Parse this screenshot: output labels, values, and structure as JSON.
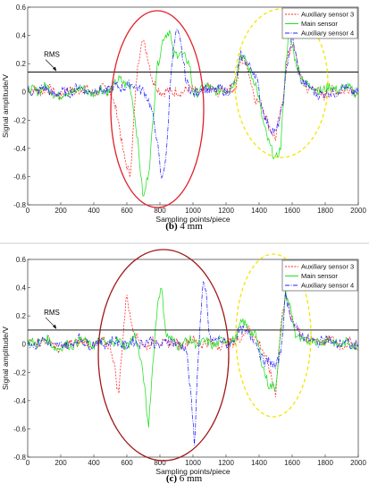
{
  "chart_data": [
    {
      "type": "line",
      "caption_letter": "(b)",
      "caption_text": " 4 mm",
      "xlabel": "Sampling points/piece",
      "ylabel": "Signal amplitude/V",
      "xlim": [
        0,
        2000
      ],
      "ylim": [
        -0.8,
        0.6
      ],
      "xticks": [
        "0",
        "200",
        "400",
        "600",
        "800",
        "1000",
        "1200",
        "1400",
        "1600",
        "1800",
        "2000"
      ],
      "yticks": [
        "0.6",
        "0.4",
        "0.2",
        "0",
        "-0.2",
        "-0.4",
        "-0.6",
        "-0.8"
      ],
      "rms_label": "RMS",
      "rms_value": 0.14,
      "grid": false,
      "legend_position": "top-right",
      "series": [
        {
          "name": "Auxiliary sensor 3",
          "color": "#ff2020",
          "dash": "2,1.5",
          "x": [
            0,
            100,
            200,
            300,
            400,
            500,
            540,
            580,
            620,
            660,
            690,
            720,
            760,
            800,
            840,
            880,
            900,
            960,
            1000,
            1100,
            1200,
            1260,
            1290,
            1330,
            1380,
            1420,
            1460,
            1500,
            1540,
            1570,
            1600,
            1650,
            1700,
            1800,
            1900,
            2000
          ],
          "y": [
            0,
            0.02,
            -0.02,
            0.02,
            0,
            0.02,
            -0.15,
            -0.45,
            -0.58,
            0.1,
            0.38,
            0.3,
            0.05,
            0,
            0.02,
            -0.02,
            0,
            0.02,
            0,
            0.02,
            0,
            0.05,
            0.22,
            0.18,
            -0.05,
            -0.12,
            -0.22,
            -0.33,
            -0.1,
            0.25,
            0.35,
            0.1,
            0.02,
            -0.02,
            0.02,
            0
          ]
        },
        {
          "name": "Main sensor",
          "color": "#1ee01e",
          "dash": "",
          "x": [
            0,
            100,
            200,
            300,
            400,
            500,
            560,
            620,
            660,
            700,
            740,
            780,
            820,
            860,
            880,
            920,
            980,
            1000,
            1100,
            1200,
            1260,
            1290,
            1330,
            1380,
            1420,
            1460,
            1500,
            1530,
            1560,
            1580,
            1620,
            1700,
            1800,
            1900,
            2000
          ],
          "y": [
            0,
            0.03,
            -0.03,
            0.02,
            0,
            0.02,
            0.08,
            0.05,
            -0.3,
            -0.75,
            -0.5,
            0.15,
            0.4,
            0.42,
            0.25,
            0.3,
            0.18,
            0,
            0.03,
            0,
            0.1,
            0.25,
            0.2,
            0.05,
            -0.2,
            -0.35,
            -0.5,
            -0.4,
            0.2,
            0.44,
            0.2,
            0.03,
            0.02,
            0.03,
            0
          ]
        },
        {
          "name": "Auxiliary sensor 4",
          "color": "#2020ff",
          "dash": "5,1.5,1,1.5",
          "x": [
            0,
            100,
            200,
            300,
            400,
            500,
            600,
            700,
            740,
            780,
            810,
            840,
            870,
            900,
            920,
            960,
            1000,
            1100,
            1200,
            1260,
            1290,
            1330,
            1380,
            1420,
            1460,
            1500,
            1540,
            1570,
            1600,
            1650,
            1700,
            1800,
            1900,
            2000
          ],
          "y": [
            0,
            0.02,
            -0.02,
            0.03,
            0,
            0.02,
            0.05,
            0.02,
            -0.1,
            -0.3,
            -0.62,
            -0.45,
            0.2,
            0.45,
            0.38,
            0.05,
            0,
            0.02,
            0,
            0.08,
            0.25,
            0.22,
            0.1,
            -0.1,
            -0.25,
            -0.31,
            -0.1,
            0.2,
            0.38,
            0.1,
            0.02,
            -0.02,
            0.02,
            0
          ]
        }
      ]
    },
    {
      "type": "line",
      "caption_letter": "(c)",
      "caption_text": " 6 mm",
      "xlabel": "Sampling points/piece",
      "ylabel": "Signal amplitude/V",
      "xlim": [
        0,
        2000
      ],
      "ylim": [
        -0.8,
        0.6
      ],
      "xticks": [
        "0",
        "200",
        "400",
        "600",
        "800",
        "1000",
        "1200",
        "1400",
        "1600",
        "1800",
        "2000"
      ],
      "yticks": [
        "0.6",
        "0.4",
        "0.2",
        "0",
        "-0.2",
        "-0.4",
        "-0.6",
        "-0.8"
      ],
      "rms_label": "RMS",
      "rms_value": 0.1,
      "grid": false,
      "legend_position": "top-right",
      "series": [
        {
          "name": "Auxiliary sensor 3",
          "color": "#ff2020",
          "dash": "2,1.5",
          "x": [
            0,
            100,
            200,
            300,
            400,
            500,
            520,
            550,
            580,
            600,
            620,
            660,
            700,
            800,
            900,
            1000,
            1100,
            1200,
            1300,
            1340,
            1380,
            1420,
            1460,
            1500,
            1530,
            1560,
            1600,
            1700,
            1800,
            1900,
            2000
          ],
          "y": [
            0,
            0.03,
            -0.03,
            0.02,
            0,
            0,
            -0.1,
            -0.38,
            0.1,
            0.38,
            0.2,
            0.03,
            0,
            0.02,
            0,
            0.02,
            0,
            0,
            0.05,
            0.12,
            0.05,
            -0.05,
            -0.15,
            -0.35,
            0.1,
            0.38,
            0.15,
            0.02,
            0.03,
            0,
            0
          ]
        },
        {
          "name": "Main sensor",
          "color": "#1ee01e",
          "dash": "",
          "x": [
            0,
            100,
            200,
            300,
            400,
            500,
            600,
            650,
            700,
            730,
            760,
            790,
            810,
            840,
            900,
            1000,
            1100,
            1200,
            1260,
            1300,
            1340,
            1380,
            1420,
            1460,
            1500,
            1530,
            1560,
            1590,
            1620,
            1700,
            1800,
            1900,
            2000
          ],
          "y": [
            0,
            0.03,
            -0.03,
            0.02,
            0,
            0.02,
            0,
            0.05,
            -0.2,
            -0.6,
            -0.1,
            0.35,
            0.4,
            0.05,
            0,
            0.02,
            0,
            0.02,
            0.05,
            0.15,
            0.12,
            0.05,
            -0.15,
            -0.28,
            -0.32,
            0.05,
            0.38,
            0.25,
            0.05,
            0.02,
            0.03,
            0,
            0
          ]
        },
        {
          "name": "Auxiliary sensor 4",
          "color": "#2020ff",
          "dash": "5,1.5,1,1.5",
          "x": [
            0,
            100,
            200,
            300,
            400,
            500,
            600,
            700,
            800,
            900,
            960,
            990,
            1010,
            1030,
            1060,
            1080,
            1100,
            1200,
            1260,
            1300,
            1340,
            1380,
            1420,
            1460,
            1500,
            1530,
            1560,
            1600,
            1700,
            1800,
            1900,
            2000
          ],
          "y": [
            0,
            0.02,
            -0.02,
            0.03,
            0,
            0.02,
            0,
            0.02,
            0,
            0.02,
            -0.05,
            -0.4,
            -0.7,
            -0.1,
            0.4,
            0.35,
            0.05,
            0,
            0.05,
            0.1,
            0.08,
            0,
            -0.1,
            -0.12,
            -0.18,
            -0.05,
            0.35,
            0.15,
            0.02,
            0.03,
            0,
            0
          ]
        }
      ]
    }
  ]
}
